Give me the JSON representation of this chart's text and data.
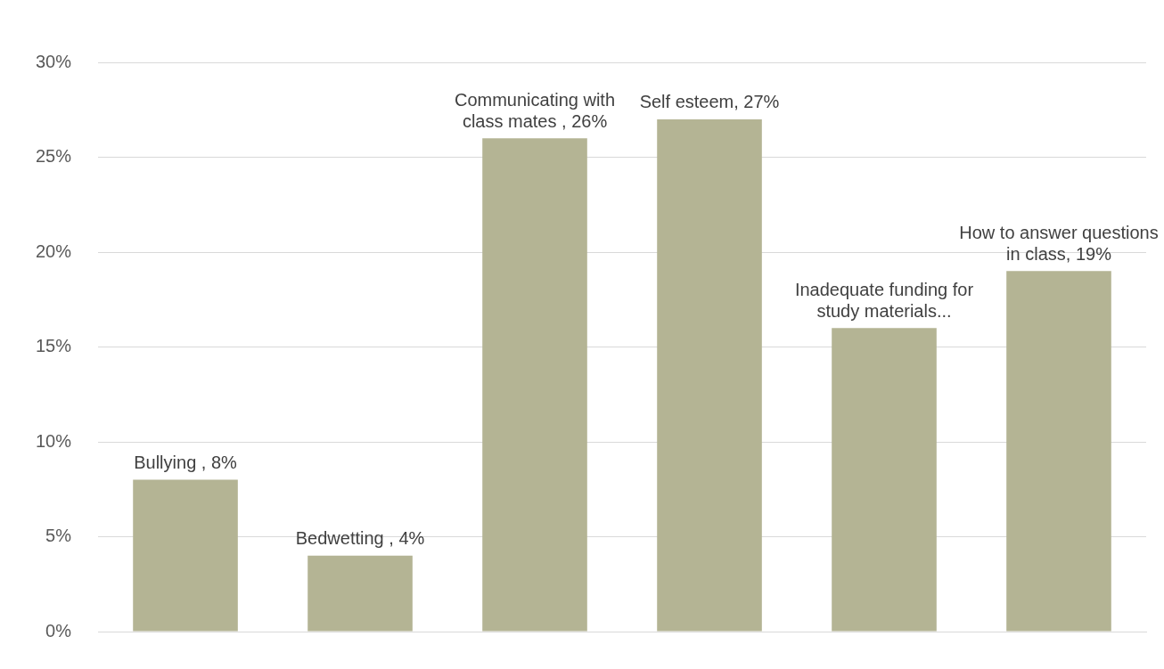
{
  "chart_data": {
    "type": "bar",
    "categories": [
      null,
      null,
      null,
      null,
      null,
      null
    ],
    "values": [
      8,
      4,
      26,
      27,
      16,
      19
    ],
    "value_labels": [
      "Bullying , 8%",
      "Bedwetting , 4%",
      "Communicating with class mates , 26%",
      "Self esteem, 27%",
      "Inadequate funding for study materials...",
      "How to answer questions in class, 19%"
    ],
    "color": "#b4b494",
    "ylim": [
      0,
      30
    ],
    "yticks": [
      {
        "value": 0,
        "label": "0%"
      },
      {
        "value": 5,
        "label": "5%"
      },
      {
        "value": 10,
        "label": "10%"
      },
      {
        "value": 15,
        "label": "15%"
      },
      {
        "value": 20,
        "label": "20%"
      },
      {
        "value": 25,
        "label": "25%"
      },
      {
        "value": 30,
        "label": "30%"
      }
    ],
    "grid": "y",
    "legend": false
  }
}
